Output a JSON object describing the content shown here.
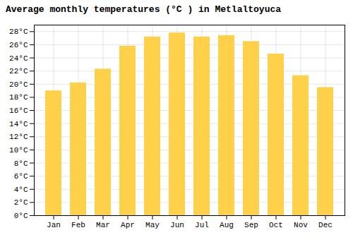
{
  "chart_data": {
    "type": "bar",
    "title": "Average monthly temperatures (°C ) in Metlaltoyuca",
    "categories": [
      "Jan",
      "Feb",
      "Mar",
      "Apr",
      "May",
      "Jun",
      "Jul",
      "Aug",
      "Sep",
      "Oct",
      "Nov",
      "Dec"
    ],
    "values": [
      19.0,
      20.2,
      22.3,
      25.8,
      27.2,
      27.8,
      27.2,
      27.4,
      26.5,
      24.6,
      21.3,
      19.5
    ],
    "color": "#FFD04A",
    "ylim": [
      0,
      29
    ],
    "yticks": [
      {
        "value": 0,
        "label": "0°C"
      },
      {
        "value": 2,
        "label": "2°C"
      },
      {
        "value": 4,
        "label": "4°C"
      },
      {
        "value": 6,
        "label": "6°C"
      },
      {
        "value": 8,
        "label": "8°C"
      },
      {
        "value": 10,
        "label": "10°C"
      },
      {
        "value": 12,
        "label": "12°C"
      },
      {
        "value": 14,
        "label": "14°C"
      },
      {
        "value": 16,
        "label": "16°C"
      },
      {
        "value": 18,
        "label": "18°C"
      },
      {
        "value": 20,
        "label": "20°C"
      },
      {
        "value": 22,
        "label": "22°C"
      },
      {
        "value": 24,
        "label": "24°C"
      },
      {
        "value": 26,
        "label": "26°C"
      },
      {
        "value": 28,
        "label": "28°C"
      }
    ],
    "grid": true
  }
}
